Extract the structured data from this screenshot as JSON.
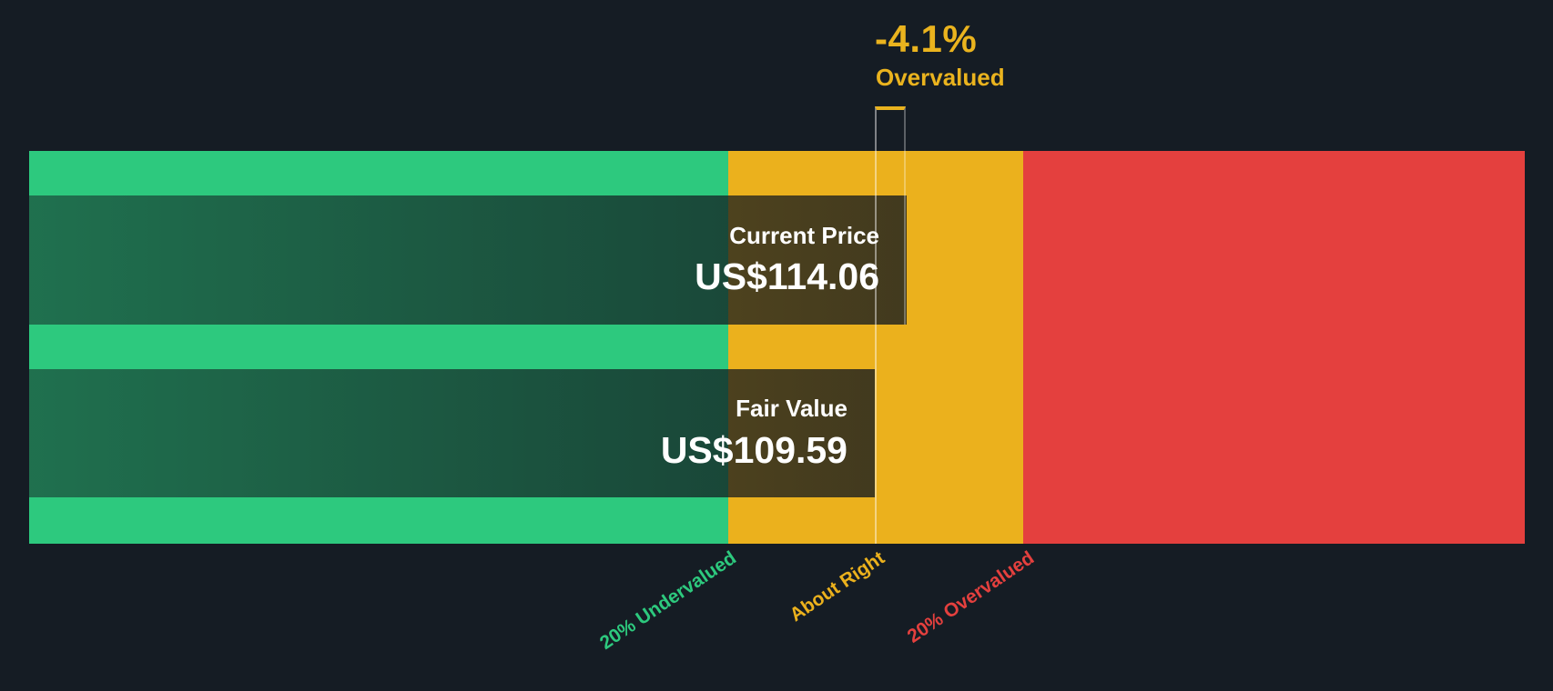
{
  "chart_data": {
    "type": "bar",
    "subtype": "valuation-gauge",
    "orientation": "horizontal",
    "delta": {
      "pct": "-4.1%",
      "status": "Overvalued",
      "color": "#eab31e"
    },
    "bars": [
      {
        "label": "Current Price",
        "value": 114.06,
        "display": "US$114.06"
      },
      {
        "label": "Fair Value",
        "value": 109.59,
        "display": "US$109.59"
      }
    ],
    "zones": [
      {
        "label": "20% Undervalued",
        "color": "#2dc97e"
      },
      {
        "label": "About Right",
        "color": "#ebb11d"
      },
      {
        "label": "20% Overvalued",
        "color": "#e4403e"
      }
    ],
    "colors": {
      "background": "#151c24",
      "bar_text": "#ffffff",
      "marker_top": "#eab31e"
    },
    "layout": {
      "legend": "none",
      "grid": "off",
      "zone_boundaries_fraction": [
        0.4675,
        0.6646
      ],
      "current_price_fraction": 0.5868,
      "fair_value_fraction": 0.5655
    }
  }
}
